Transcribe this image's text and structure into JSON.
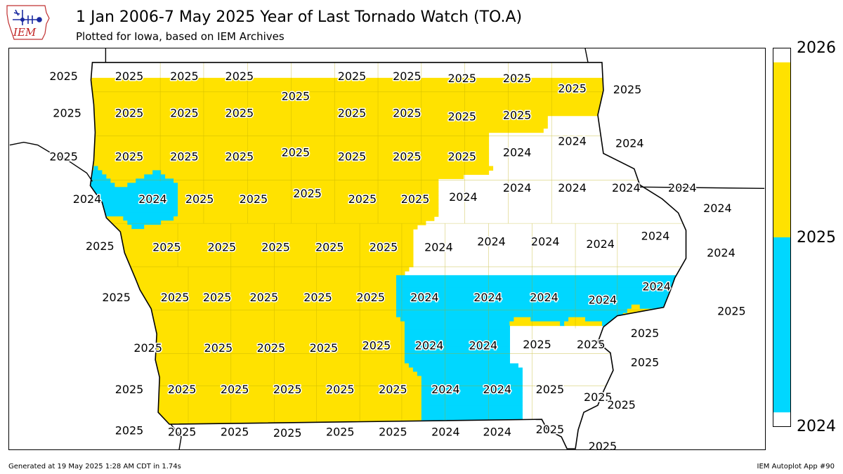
{
  "header": {
    "title": "1 Jan 2006-7 May 2025 Year of Last Tornado Watch (TO.A)",
    "subtitle": "Plotted for Iowa, based on IEM Archives"
  },
  "logo": {
    "text": "IEM"
  },
  "colorbar": {
    "ticks": [
      "2026",
      "2025",
      "2024"
    ],
    "colors": {
      "2025": "#ffe200",
      "2024": "#00d7ff"
    }
  },
  "footer": {
    "left": "Generated at 19 May 2025 1:28 AM CDT in 1.74s",
    "right": "IEM Autoplot App #90"
  },
  "colors": {
    "2025": "#ffe200",
    "2024": "#00d7ff",
    "boundary": "#000000",
    "county_line": "#b8a800"
  },
  "counties": [
    {
      "year": "2025",
      "lat": 43.38,
      "lon": -96.18
    },
    {
      "year": "2025",
      "lat": 43.38,
      "lon": -95.62
    },
    {
      "year": "2025",
      "lat": 43.38,
      "lon": -95.15
    },
    {
      "year": "2025",
      "lat": 43.38,
      "lon": -94.68
    },
    {
      "year": "2025",
      "lat": 43.2,
      "lon": -94.2
    },
    {
      "year": "2025",
      "lat": 43.38,
      "lon": -93.72
    },
    {
      "year": "2025",
      "lat": 43.38,
      "lon": -93.25
    },
    {
      "year": "2025",
      "lat": 43.36,
      "lon": -92.78
    },
    {
      "year": "2025",
      "lat": 43.36,
      "lon": -92.31
    },
    {
      "year": "2025",
      "lat": 43.27,
      "lon": -91.84
    },
    {
      "year": "2025",
      "lat": 43.26,
      "lon": -91.37
    },
    {
      "year": "2025",
      "lat": 43.05,
      "lon": -96.15
    },
    {
      "year": "2025",
      "lat": 43.05,
      "lon": -95.62
    },
    {
      "year": "2025",
      "lat": 43.05,
      "lon": -95.15
    },
    {
      "year": "2025",
      "lat": 43.05,
      "lon": -94.68
    },
    {
      "year": "2025",
      "lat": 43.05,
      "lon": -93.72
    },
    {
      "year": "2025",
      "lat": 43.05,
      "lon": -93.25
    },
    {
      "year": "2025",
      "lat": 43.02,
      "lon": -92.78
    },
    {
      "year": "2025",
      "lat": 43.03,
      "lon": -92.31
    },
    {
      "year": "2025",
      "lat": 42.66,
      "lon": -96.18
    },
    {
      "year": "2025",
      "lat": 42.66,
      "lon": -95.62
    },
    {
      "year": "2025",
      "lat": 42.66,
      "lon": -95.15
    },
    {
      "year": "2025",
      "lat": 42.66,
      "lon": -94.68
    },
    {
      "year": "2025",
      "lat": 42.7,
      "lon": -94.2
    },
    {
      "year": "2025",
      "lat": 42.66,
      "lon": -93.72
    },
    {
      "year": "2025",
      "lat": 42.66,
      "lon": -93.25
    },
    {
      "year": "2025",
      "lat": 42.66,
      "lon": -92.78
    },
    {
      "year": "2024",
      "lat": 42.7,
      "lon": -92.31
    },
    {
      "year": "2024",
      "lat": 42.8,
      "lon": -91.84
    },
    {
      "year": "2024",
      "lat": 42.78,
      "lon": -91.35
    },
    {
      "year": "2024",
      "lat": 42.28,
      "lon": -95.98
    },
    {
      "year": "2024",
      "lat": 42.28,
      "lon": -95.42
    },
    {
      "year": "2025",
      "lat": 42.28,
      "lon": -95.02
    },
    {
      "year": "2025",
      "lat": 42.28,
      "lon": -94.56
    },
    {
      "year": "2025",
      "lat": 42.33,
      "lon": -94.1
    },
    {
      "year": "2025",
      "lat": 42.28,
      "lon": -93.63
    },
    {
      "year": "2025",
      "lat": 42.28,
      "lon": -93.18
    },
    {
      "year": "2024",
      "lat": 42.3,
      "lon": -92.77
    },
    {
      "year": "2024",
      "lat": 42.38,
      "lon": -92.31
    },
    {
      "year": "2024",
      "lat": 42.38,
      "lon": -91.84
    },
    {
      "year": "2024",
      "lat": 42.38,
      "lon": -91.38
    },
    {
      "year": "2024",
      "lat": 42.38,
      "lon": -90.9
    },
    {
      "year": "2024",
      "lat": 42.2,
      "lon": -90.6
    },
    {
      "year": "2025",
      "lat": 41.86,
      "lon": -95.87
    },
    {
      "year": "2025",
      "lat": 41.85,
      "lon": -95.3
    },
    {
      "year": "2025",
      "lat": 41.85,
      "lon": -94.83
    },
    {
      "year": "2025",
      "lat": 41.85,
      "lon": -94.37
    },
    {
      "year": "2025",
      "lat": 41.85,
      "lon": -93.91
    },
    {
      "year": "2025",
      "lat": 41.85,
      "lon": -93.45
    },
    {
      "year": "2024",
      "lat": 41.85,
      "lon": -92.98
    },
    {
      "year": "2024",
      "lat": 41.9,
      "lon": -92.53
    },
    {
      "year": "2024",
      "lat": 41.9,
      "lon": -92.07
    },
    {
      "year": "2024",
      "lat": 41.88,
      "lon": -91.6
    },
    {
      "year": "2024",
      "lat": 41.95,
      "lon": -91.13
    },
    {
      "year": "2024",
      "lat": 41.8,
      "lon": -90.57
    },
    {
      "year": "2025",
      "lat": 41.4,
      "lon": -95.73
    },
    {
      "year": "2025",
      "lat": 41.4,
      "lon": -95.23
    },
    {
      "year": "2025",
      "lat": 41.4,
      "lon": -94.87
    },
    {
      "year": "2025",
      "lat": 41.4,
      "lon": -94.47
    },
    {
      "year": "2025",
      "lat": 41.4,
      "lon": -94.01
    },
    {
      "year": "2025",
      "lat": 41.4,
      "lon": -93.56
    },
    {
      "year": "2024",
      "lat": 41.4,
      "lon": -93.1
    },
    {
      "year": "2024",
      "lat": 41.4,
      "lon": -92.56
    },
    {
      "year": "2024",
      "lat": 41.4,
      "lon": -92.08
    },
    {
      "year": "2024",
      "lat": 41.38,
      "lon": -91.58
    },
    {
      "year": "2024",
      "lat": 41.5,
      "lon": -91.12
    },
    {
      "year": "2025",
      "lat": 41.28,
      "lon": -90.48
    },
    {
      "year": "2025",
      "lat": 40.95,
      "lon": -95.46
    },
    {
      "year": "2025",
      "lat": 40.95,
      "lon": -94.86
    },
    {
      "year": "2025",
      "lat": 40.95,
      "lon": -94.41
    },
    {
      "year": "2025",
      "lat": 40.95,
      "lon": -93.96
    },
    {
      "year": "2025",
      "lat": 40.97,
      "lon": -93.51
    },
    {
      "year": "2024",
      "lat": 40.97,
      "lon": -93.06
    },
    {
      "year": "2024",
      "lat": 40.97,
      "lon": -92.6
    },
    {
      "year": "2025",
      "lat": 40.98,
      "lon": -92.14
    },
    {
      "year": "2025",
      "lat": 40.98,
      "lon": -91.68
    },
    {
      "year": "2025",
      "lat": 41.08,
      "lon": -91.22
    },
    {
      "year": "2025",
      "lat": 40.82,
      "lon": -91.22
    },
    {
      "year": "2025",
      "lat": 40.58,
      "lon": -95.62
    },
    {
      "year": "2025",
      "lat": 40.58,
      "lon": -95.17
    },
    {
      "year": "2025",
      "lat": 40.58,
      "lon": -94.72
    },
    {
      "year": "2025",
      "lat": 40.58,
      "lon": -94.27
    },
    {
      "year": "2025",
      "lat": 40.58,
      "lon": -93.82
    },
    {
      "year": "2025",
      "lat": 40.58,
      "lon": -93.37
    },
    {
      "year": "2024",
      "lat": 40.58,
      "lon": -92.92
    },
    {
      "year": "2024",
      "lat": 40.58,
      "lon": -92.48
    },
    {
      "year": "2025",
      "lat": 40.58,
      "lon": -92.03
    },
    {
      "year": "2025",
      "lat": 40.51,
      "lon": -91.62
    },
    {
      "year": "2025",
      "lat": 40.44,
      "lon": -91.42
    },
    {
      "year": "2025",
      "lat": 40.21,
      "lon": -95.62
    },
    {
      "year": "2025",
      "lat": 40.2,
      "lon": -95.17
    },
    {
      "year": "2025",
      "lat": 40.2,
      "lon": -94.72
    },
    {
      "year": "2025",
      "lat": 40.19,
      "lon": -94.27
    },
    {
      "year": "2025",
      "lat": 40.2,
      "lon": -93.82
    },
    {
      "year": "2025",
      "lat": 40.2,
      "lon": -93.37
    },
    {
      "year": "2024",
      "lat": 40.2,
      "lon": -92.92
    },
    {
      "year": "2024",
      "lat": 40.2,
      "lon": -92.48
    },
    {
      "year": "2025",
      "lat": 40.22,
      "lon": -92.03
    },
    {
      "year": "2025",
      "lat": 40.07,
      "lon": -91.58
    }
  ]
}
